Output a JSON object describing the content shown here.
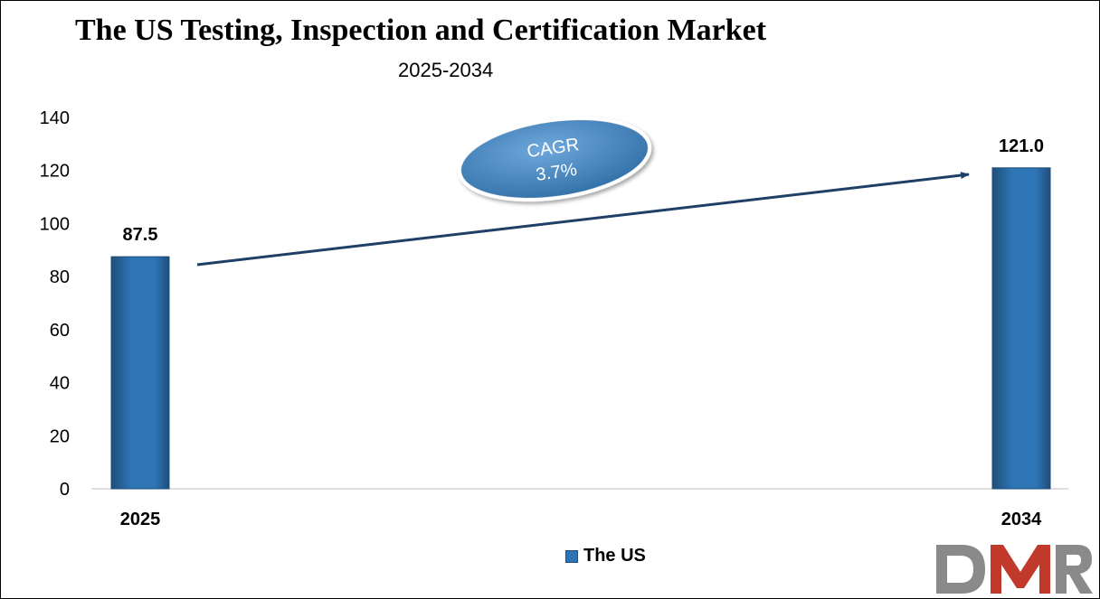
{
  "title": "The US Testing, Inspection and Certification Market",
  "subtitle": "2025-2034",
  "legend": {
    "label": "The US"
  },
  "annotation": {
    "line1": "CAGR",
    "line2": "3.7%"
  },
  "logo": {
    "text": "DMR"
  },
  "colors": {
    "bar": "#2e75b6",
    "bar_dark": "#1f4e79",
    "bar_light": "#5b9bd5",
    "arrow": "#1f3f66",
    "logo_gray": "#8a8a8a",
    "logo_red": "#c0392b"
  },
  "chart_data": {
    "type": "bar",
    "categories": [
      "2025",
      "2034"
    ],
    "series": [
      {
        "name": "The US",
        "values": [
          87.5,
          121.0
        ]
      }
    ],
    "data_labels": [
      "87.5",
      "121.0"
    ],
    "title": "The US Testing, Inspection and Certification Market",
    "subtitle": "2025-2034",
    "xlabel": "",
    "ylabel": "",
    "ylim": [
      0,
      140
    ],
    "yticks": [
      0,
      20,
      40,
      60,
      80,
      100,
      120,
      140
    ],
    "grid": false,
    "legend_position": "bottom"
  }
}
